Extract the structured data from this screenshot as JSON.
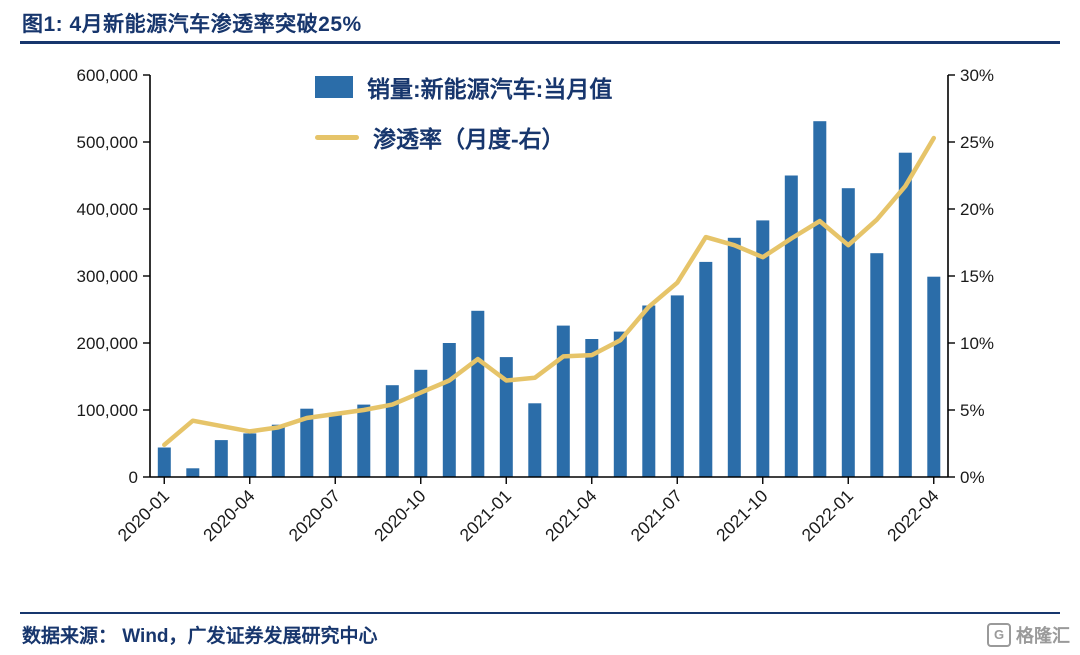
{
  "title": "图1:  4月新能源汽车渗透率突破25%",
  "footer": {
    "source_text": "数据来源： Wind，广发证券发展研究中心"
  },
  "watermark": {
    "text": "格隆汇",
    "icon": "gelonghui-logo"
  },
  "colors": {
    "bar": "#2b6da9",
    "line": "#e6c469",
    "title_navy": "#17366d",
    "axis": "#000000",
    "watermark_gray": "#9a9a9a"
  },
  "legend": [
    {
      "label": "销量:新能源汽车:当月值",
      "type": "bar"
    },
    {
      "label": "渗透率（月度-右）",
      "type": "line"
    }
  ],
  "chart_data": {
    "type": "bar+line",
    "title": "4月新能源汽车渗透率突破25%",
    "x": [
      "2020-01",
      "2020-02",
      "2020-03",
      "2020-04",
      "2020-05",
      "2020-06",
      "2020-07",
      "2020-08",
      "2020-09",
      "2020-10",
      "2020-11",
      "2020-12",
      "2021-01",
      "2021-02",
      "2021-03",
      "2021-04",
      "2021-05",
      "2021-06",
      "2021-07",
      "2021-08",
      "2021-09",
      "2021-10",
      "2021-11",
      "2021-12",
      "2022-01",
      "2022-02",
      "2022-03",
      "2022-04"
    ],
    "x_tick_every": 3,
    "series": [
      {
        "name": "销量:新能源汽车:当月值",
        "type": "bar",
        "axis": "left",
        "values": [
          44000,
          13000,
          55000,
          65000,
          78000,
          102000,
          96000,
          108000,
          137000,
          160000,
          200000,
          248000,
          179000,
          110000,
          226000,
          206000,
          217000,
          256000,
          271000,
          321000,
          357000,
          383000,
          450000,
          531000,
          431000,
          334000,
          484000,
          299000
        ]
      },
      {
        "name": "渗透率（月度-右）",
        "type": "line",
        "axis": "right",
        "values": [
          2.4,
          4.2,
          3.8,
          3.4,
          3.7,
          4.4,
          4.7,
          5.0,
          5.4,
          6.3,
          7.2,
          8.8,
          7.2,
          7.4,
          9.0,
          9.1,
          10.2,
          12.7,
          14.5,
          17.9,
          17.3,
          16.4,
          17.8,
          19.1,
          17.3,
          19.2,
          21.7,
          25.3
        ]
      }
    ],
    "y_left": {
      "min": 0,
      "max": 600000,
      "step": 100000
    },
    "y_right": {
      "min": 0,
      "max": 30,
      "step": 5,
      "unit": "%"
    },
    "y_left_tick_labels": [
      "0",
      "100,000",
      "200,000",
      "300,000",
      "400,000",
      "500,000",
      "600,000"
    ],
    "y_right_tick_labels": [
      "0%",
      "5%",
      "10%",
      "15%",
      "20%",
      "25%",
      "30%"
    ],
    "grid": false,
    "legend_position": "top-inside"
  }
}
